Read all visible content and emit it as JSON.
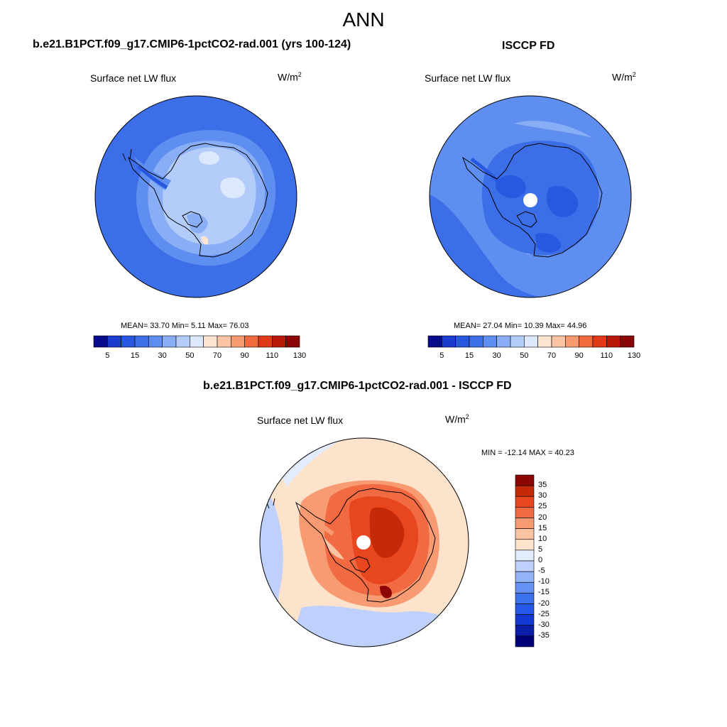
{
  "title": "ANN",
  "colorbar_colors": [
    "#0a0a8c",
    "#1a3ccc",
    "#2858e0",
    "#3c6ee8",
    "#5e8ef0",
    "#8aaef6",
    "#b4ccfa",
    "#dce8fd",
    "#fde5d2",
    "#fcc4a4",
    "#f89a70",
    "#f06a40",
    "#e03a18",
    "#b81808",
    "#8a0606"
  ],
  "diff_colors": [
    "#00007a",
    "#0a1ea8",
    "#1438d4",
    "#2458e8",
    "#3c72f0",
    "#6692f4",
    "#93b3f8",
    "#bed0fb",
    "#e3ecfd",
    "#fde3cc",
    "#fcc2a2",
    "#f89a72",
    "#f26a42",
    "#e8461e",
    "#c42a08",
    "#8c0606"
  ],
  "panels": [
    {
      "title": "b.e21.B1PCT.f09_g17.CMIP6-1pctCO2-rad.001 (yrs 100-124)",
      "variable": "Surface net LW flux",
      "units_base": "W/m",
      "units_exp": "2",
      "stats": "MEAN=  33.70  Min=   5.11  Max=  76.03",
      "colorbar_ticks": [
        "5",
        "15",
        "30",
        "50",
        "70",
        "90",
        "110",
        "130"
      ]
    },
    {
      "title": "ISCCP FD",
      "variable": "Surface net LW flux",
      "units_base": "W/m",
      "units_exp": "2",
      "stats": "MEAN=  27.04  Min=  10.39  Max=  44.96",
      "colorbar_ticks": [
        "5",
        "15",
        "30",
        "50",
        "70",
        "90",
        "110",
        "130"
      ]
    }
  ],
  "diff": {
    "title": "b.e21.B1PCT.f09_g17.CMIP6-1pctCO2-rad.001 - ISCCP FD",
    "variable": "Surface net LW flux",
    "units_base": "W/m",
    "units_exp": "2",
    "stats": "MIN = -12.14 MAX =  40.23",
    "colorbar_ticks": [
      "35",
      "30",
      "25",
      "20",
      "15",
      "10",
      "5",
      "0",
      "-5",
      "-10",
      "-15",
      "-20",
      "-25",
      "-30",
      "-35"
    ]
  }
}
